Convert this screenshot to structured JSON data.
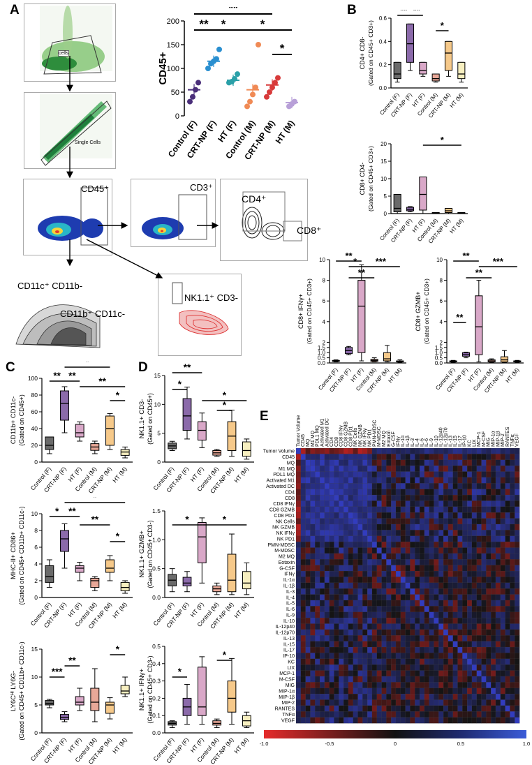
{
  "panels": {
    "A": "A",
    "B": "B",
    "C": "C",
    "D": "D",
    "E": "E"
  },
  "flow": {
    "cd45": "CD45⁺",
    "cd3": "CD3⁺",
    "cd4": "CD4⁺",
    "cd8": "CD8⁺",
    "cd11c_pos": "CD11c⁺ CD11b-",
    "cd11b_pos": "CD11b⁺ CD11c-",
    "nk": "NK1.1⁺ CD3-",
    "gate_cells": "cells",
    "single_cells": "Single Cells"
  },
  "groups": [
    "Control (F)",
    "CRT-NP (F)",
    "HT (F)",
    "Control (M)",
    "CRT-NP (M)",
    "HT (M)"
  ],
  "colors": {
    "ctrlF": "#6a6a6a",
    "crtF": "#8b6aaa",
    "htF": "#d9a8c8",
    "ctrlM": "#e8a898",
    "crtM": "#f6c98a",
    "htM": "#f7efc0",
    "purple": "#4b2f7a",
    "blue": "#2a8fd0",
    "teal": "#2aa0a8",
    "orange": "#f08a55",
    "red": "#d83a3a",
    "lav": "#b8a0d8"
  },
  "chart_data": [
    {
      "id": "A-cd45",
      "type": "scatter",
      "ylabel": "CD45+",
      "ylim": [
        0,
        200
      ],
      "ticks": [
        0,
        50,
        100,
        150,
        200
      ],
      "means": [
        55,
        115,
        75,
        55,
        65,
        28
      ],
      "sig": [
        "**",
        "*",
        "**",
        "*",
        "*"
      ],
      "points": [
        [
          30,
          40,
          55,
          70
        ],
        [
          100,
          110,
          115,
          120,
          140
        ],
        [
          70,
          72,
          78,
          88
        ],
        [
          20,
          30,
          45,
          60,
          150
        ],
        [
          40,
          50,
          60,
          70,
          80
        ],
        [
          20,
          25,
          30
        ]
      ]
    },
    {
      "id": "B-cd4",
      "type": "box",
      "ylabel": "CD4+ CD8-",
      "ylabel2": "(Gated on CD45+ CD3+)",
      "ylim": [
        0,
        0.6
      ],
      "ticks": [
        "0.0",
        "0.2",
        "0.4",
        "0.6"
      ],
      "boxes": [
        [
          0.05,
          0.08,
          0.12,
          0.22,
          0.22
        ],
        [
          0.15,
          0.22,
          0.38,
          0.55,
          0.55
        ],
        [
          0.1,
          0.12,
          0.15,
          0.22,
          0.22
        ],
        [
          0.05,
          0.06,
          0.08,
          0.12,
          0.12
        ],
        [
          0.1,
          0.15,
          0.3,
          0.4,
          0.4
        ],
        [
          0.05,
          0.08,
          0.12,
          0.22,
          0.22
        ]
      ],
      "sig": [
        "**",
        "**",
        "*"
      ]
    },
    {
      "id": "B-cd8",
      "type": "box",
      "ylabel": "CD8+ CD4-",
      "ylabel2": "(Gated on CD45+ CD3+)",
      "ylim": [
        0,
        20
      ],
      "ticks": [
        "0",
        "5",
        "10",
        "15",
        "20"
      ],
      "boxes": [
        [
          0,
          0.5,
          1.5,
          5.5,
          5.5
        ],
        [
          0.5,
          0.8,
          1.2,
          1.8,
          2
        ],
        [
          0,
          1,
          5.5,
          10.5,
          10.5
        ],
        [
          0,
          0.1,
          0.2,
          0.3,
          0.3
        ],
        [
          0,
          0.3,
          0.8,
          1.5,
          1.5
        ],
        [
          0,
          0.1,
          0.2,
          0.3,
          0.3
        ]
      ],
      "sig": [
        "*"
      ]
    },
    {
      "id": "B-ifng",
      "type": "box",
      "ylabel": "CD8+ IFNγ+",
      "ylabel2": "(Gated on CD45+ CD3+)",
      "ylim": [
        0,
        10
      ],
      "ticks": [
        "0.0",
        "0.5",
        "1.0",
        "1.5",
        "2",
        "4",
        "6",
        "8",
        "10"
      ],
      "boxes": [
        [
          0.1,
          0.15,
          0.2,
          0.25,
          0.3
        ],
        [
          0.8,
          0.9,
          1.2,
          1.5,
          1.6
        ],
        [
          0.2,
          1,
          5.5,
          8,
          9.5
        ],
        [
          0.1,
          0.15,
          0.25,
          0.35,
          0.5
        ],
        [
          0.1,
          0.2,
          0.4,
          1,
          1.7
        ],
        [
          0.05,
          0.1,
          0.15,
          0.2,
          0.3
        ]
      ],
      "sig": [
        "**",
        "*",
        "**",
        "***"
      ]
    },
    {
      "id": "B-gzmb",
      "type": "box",
      "ylabel": "CD8+ GZMB+",
      "ylabel2": "(Gated on CD45+ CD3+)",
      "ylim": [
        0,
        10
      ],
      "ticks": [
        "0.0",
        "0.5",
        "1.0",
        "1.5",
        "2",
        "4",
        "6",
        "8",
        "10"
      ],
      "boxes": [
        [
          0.05,
          0.1,
          0.15,
          0.2,
          0.25
        ],
        [
          0.5,
          0.65,
          0.8,
          1,
          1.05
        ],
        [
          0.1,
          0.8,
          3.5,
          6.5,
          8
        ],
        [
          0.05,
          0.1,
          0.2,
          0.3,
          0.4
        ],
        [
          0.05,
          0.1,
          0.3,
          0.6,
          1.2
        ],
        [
          0.05,
          0.1,
          0.15,
          0.2,
          0.25
        ]
      ],
      "sig": [
        "**",
        "**",
        "**",
        "***"
      ]
    },
    {
      "id": "C-cd11b",
      "type": "box",
      "ylabel": "CD11b+ CD11c-",
      "ylabel2": "(Gated on CD45+)",
      "ylim": [
        0,
        100
      ],
      "ticks": [
        "0",
        "20",
        "40",
        "60",
        "80",
        "100"
      ],
      "boxes": [
        [
          10,
          15,
          20,
          30,
          30
        ],
        [
          35,
          50,
          70,
          85,
          90
        ],
        [
          25,
          30,
          35,
          45,
          48
        ],
        [
          10,
          14,
          18,
          22,
          25
        ],
        [
          15,
          20,
          40,
          55,
          58
        ],
        [
          5,
          8,
          12,
          15,
          18
        ]
      ],
      "sig": [
        "**",
        "**",
        "*",
        "**",
        "*"
      ]
    },
    {
      "id": "C-mhc",
      "type": "box",
      "ylabel": "MHC-II+ CD86+",
      "ylabel2": "(Gated on CD45+ CD11b+ CD11c-)",
      "ylim": [
        0,
        10
      ],
      "ticks": [
        "0",
        "2",
        "4",
        "6",
        "8",
        "10"
      ],
      "boxes": [
        [
          1.2,
          1.8,
          2.5,
          3.8,
          4.5
        ],
        [
          3.5,
          5.5,
          7,
          8,
          8.8
        ],
        [
          2,
          3,
          3.5,
          3.8,
          4.2
        ],
        [
          0.8,
          1.2,
          2,
          2.3,
          2.5
        ],
        [
          2,
          3,
          3.5,
          4.5,
          5
        ],
        [
          0.5,
          0.8,
          1.2,
          1.8,
          2
        ]
      ],
      "sig": [
        "*",
        "**",
        "*",
        "**",
        "*"
      ]
    },
    {
      "id": "C-ly6c",
      "type": "box",
      "ylabel": "LY6Cᴴᴵ LY6G-",
      "ylabel2": "(Gated on CD45+ CD11b+ CD11c-)",
      "ylim": [
        0,
        15
      ],
      "ticks": [
        "0",
        "5",
        "10",
        "15"
      ],
      "boxes": [
        [
          4.5,
          5,
          5.3,
          5.8,
          6
        ],
        [
          2,
          2.4,
          2.8,
          3.3,
          3.8
        ],
        [
          4,
          5,
          5.5,
          6.5,
          8
        ],
        [
          2,
          4,
          5.5,
          8,
          11.5
        ],
        [
          2.5,
          3.5,
          5,
          5.5,
          6.3
        ],
        [
          6.5,
          7,
          7.5,
          8.5,
          10
        ]
      ],
      "sig": [
        "***",
        "**",
        "*"
      ]
    },
    {
      "id": "D-nk",
      "type": "box",
      "ylabel": "NK1.1+ CD3-",
      "ylabel2": "(Gated on CD45+)",
      "ylim": [
        0,
        15
      ],
      "ticks": [
        "0",
        "5",
        "10",
        "15"
      ],
      "boxes": [
        [
          2,
          2.3,
          2.8,
          3.3,
          3.6
        ],
        [
          4,
          5.5,
          8,
          11,
          13
        ],
        [
          2.5,
          3.8,
          5.5,
          7,
          8.5
        ],
        [
          1,
          1.2,
          1.6,
          2,
          2.2
        ],
        [
          1,
          2,
          4.5,
          7,
          9
        ],
        [
          0.5,
          1,
          2,
          3.5,
          4
        ]
      ],
      "sig": [
        "*",
        "**",
        "*",
        "*"
      ]
    },
    {
      "id": "D-gzmb",
      "type": "box",
      "ylabel": "NK1.1+ GZMB+",
      "ylabel2": "(Gated on CD45+ CD3-)",
      "ylim": [
        0,
        1.5
      ],
      "ticks": [
        "0.0",
        "0.5",
        "1.0",
        "1.5"
      ],
      "boxes": [
        [
          0.1,
          0.2,
          0.3,
          0.4,
          0.5
        ],
        [
          0.1,
          0.2,
          0.25,
          0.35,
          0.45
        ],
        [
          0.25,
          0.6,
          1.05,
          1.3,
          1.38
        ],
        [
          0.05,
          0.1,
          0.15,
          0.2,
          0.25
        ],
        [
          0.05,
          0.1,
          0.3,
          0.75,
          1.1
        ],
        [
          0.05,
          0.15,
          0.25,
          0.45,
          0.6
        ]
      ],
      "sig": [
        "*",
        "*"
      ]
    },
    {
      "id": "D-ifng",
      "type": "box",
      "ylabel": "NK1.1+ IFNγ+",
      "ylabel2": "(Gated on CD45+ CD3-)",
      "ylim": [
        0,
        0.5
      ],
      "ticks": [
        "0.0",
        "0.1",
        "0.2",
        "0.3",
        "0.4",
        "0.5"
      ],
      "boxes": [
        [
          0.03,
          0.045,
          0.055,
          0.065,
          0.07
        ],
        [
          0.05,
          0.1,
          0.15,
          0.2,
          0.28
        ],
        [
          0.05,
          0.1,
          0.15,
          0.38,
          0.44
        ],
        [
          0.03,
          0.045,
          0.055,
          0.07,
          0.08
        ],
        [
          0.05,
          0.12,
          0.2,
          0.3,
          0.43
        ],
        [
          0.03,
          0.04,
          0.07,
          0.1,
          0.12
        ]
      ],
      "sig": [
        "*",
        "*"
      ]
    },
    {
      "id": "E-heatmap",
      "type": "heatmap",
      "labels": [
        "Tumor Volume",
        "CD45",
        "MQ",
        "M1 MQ",
        "PDL1 MQ",
        "Activated M1",
        "Activated DC",
        "CD4",
        "CD8",
        "CD8 IFNγ",
        "CD8 GZMB",
        "CD8 PD1",
        "NK Cells",
        "NK GZMB",
        "NK IFNγ",
        "NK PD1",
        "PMN-MDSC",
        "M-MDSC",
        "M2 MQ",
        "Eotaxin",
        "G-CSF",
        "IFNγ",
        "IL-1α",
        "IL-1β",
        "IL-3",
        "IL-4",
        "IL-5",
        "IL-6",
        "IL-9",
        "IL-10",
        "IL-12p40",
        "IL-12p70",
        "IL-13",
        "IL-15",
        "IL-17",
        "IP-10",
        "KC",
        "LIX",
        "MCP-1",
        "M-CSF",
        "MIG",
        "MIP-1α",
        "MIP-1β",
        "MIP-2",
        "RANTES",
        "TNFα",
        "VEGF"
      ],
      "colorbar": {
        "ticks": [
          "-1.0",
          "-0.5",
          "0",
          "0.5",
          "1.0"
        ]
      }
    }
  ]
}
